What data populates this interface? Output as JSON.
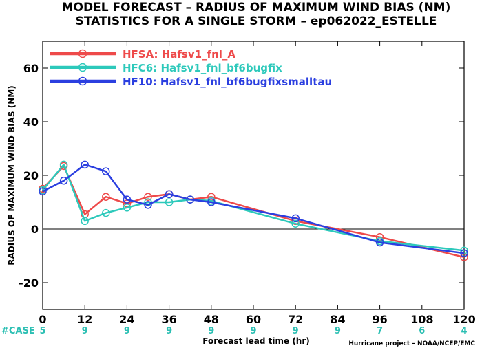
{
  "title_line1": "MODEL FORECAST – RADIUS OF MAXIMUM WIND BIAS (NM)",
  "title_line2": "STATISTICS FOR A SINGLE STORM – ep062022_ESTELLE",
  "credit": "Hurricane project – NOAA/NCEP/EMC",
  "case_label": "#CASE",
  "chart_data": {
    "type": "line",
    "xlabel": "Forecast lead time (hr)",
    "ylabel": "RADIUS OF MAXIMUM WIND BIAS (NM)",
    "xlim": [
      0,
      120
    ],
    "ylim": [
      -30,
      70
    ],
    "xticks": [
      0,
      12,
      24,
      36,
      48,
      60,
      72,
      84,
      96,
      108,
      120
    ],
    "yticks": [
      -20,
      0,
      20,
      40,
      60
    ],
    "zero_line": true,
    "grid": false,
    "legend_position": "top-left",
    "series": [
      {
        "name": "HFSA: Hafsv1_fnl_A",
        "color": "#ee4a4a",
        "x": [
          0,
          6,
          12,
          18,
          24,
          30,
          36,
          42,
          48,
          72,
          96,
          120
        ],
        "y": [
          15,
          23.5,
          5.5,
          12,
          9.5,
          12,
          13,
          11,
          12,
          3,
          -3,
          -10.5
        ]
      },
      {
        "name": "HFC6: Hafsv1_fnl_bf6bugfix",
        "color": "#2dc9bb",
        "x": [
          0,
          6,
          12,
          18,
          24,
          30,
          36,
          42,
          48,
          72,
          96,
          120
        ],
        "y": [
          14.5,
          24,
          3,
          6,
          8,
          10,
          10,
          11,
          10.5,
          2,
          -4.5,
          -8
        ]
      },
      {
        "name": "HF10: Hafsv1_fnl_bf6bugfixsmalltau",
        "color": "#2b3fe0",
        "x": [
          0,
          6,
          12,
          18,
          24,
          30,
          36,
          42,
          48,
          72,
          96,
          120
        ],
        "y": [
          14,
          18,
          24,
          21.5,
          11,
          9,
          13,
          11,
          10,
          4,
          -5,
          -9
        ]
      }
    ],
    "cases": [
      {
        "x": 0,
        "label": "5"
      },
      {
        "x": 12,
        "label": "9"
      },
      {
        "x": 24,
        "label": "9"
      },
      {
        "x": 36,
        "label": "9"
      },
      {
        "x": 48,
        "label": "9"
      },
      {
        "x": 60,
        "label": "9"
      },
      {
        "x": 72,
        "label": "9"
      },
      {
        "x": 84,
        "label": "9"
      },
      {
        "x": 96,
        "label": "7"
      },
      {
        "x": 108,
        "label": "6"
      },
      {
        "x": 120,
        "label": "4"
      }
    ]
  }
}
